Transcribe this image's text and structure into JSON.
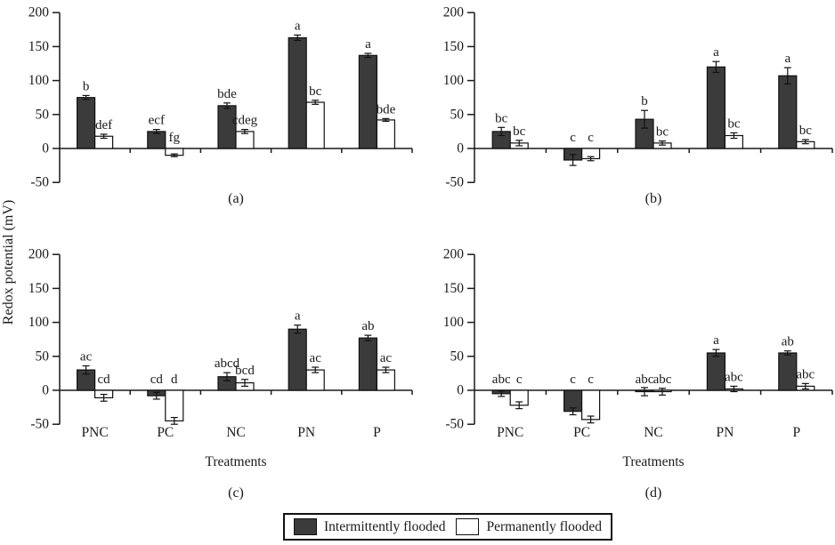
{
  "figure": {
    "y_axis_label": "Redox potential (mV)",
    "x_axis_label": "Treatments",
    "categories": [
      "PNC",
      "PC",
      "NC",
      "PN",
      "P"
    ],
    "y_ticks": [
      200,
      150,
      100,
      50,
      0,
      -50
    ],
    "ylim": [
      -50,
      200
    ],
    "grid": false,
    "legend_position": "bottom",
    "colors": {
      "intermittent": "#3b3b3b",
      "permanent": "#ffffff",
      "axis": "#1a1a1a"
    }
  },
  "legend": {
    "items": [
      {
        "label": "Intermittently flooded",
        "swatch": "intermittent"
      },
      {
        "label": "Permanently flooded",
        "swatch": "permanent"
      }
    ]
  },
  "chart_data": [
    {
      "type": "bar",
      "panel": "a",
      "caption": "(a)",
      "categories": [
        "PNC",
        "PC",
        "NC",
        "PN",
        "P"
      ],
      "series": [
        {
          "name": "Intermittently flooded",
          "values": [
            75,
            25,
            63,
            163,
            137
          ],
          "errors": [
            3,
            3,
            4,
            4,
            3
          ],
          "letters": [
            "b",
            "ecf",
            "bde",
            "a",
            "a"
          ]
        },
        {
          "name": "Permanently flooded",
          "values": [
            18,
            -10,
            25,
            68,
            42
          ],
          "errors": [
            3,
            2,
            3,
            3,
            2
          ],
          "letters": [
            "def",
            "fg",
            "cdeg",
            "bc",
            "bde"
          ]
        }
      ]
    },
    {
      "type": "bar",
      "panel": "b",
      "caption": "(b)",
      "categories": [
        "PNC",
        "PC",
        "NC",
        "PN",
        "P"
      ],
      "series": [
        {
          "name": "Intermittently flooded",
          "values": [
            25,
            -17,
            43,
            120,
            107
          ],
          "errors": [
            6,
            8,
            13,
            8,
            12
          ],
          "letters": [
            "bc",
            "c",
            "b",
            "a",
            "a"
          ]
        },
        {
          "name": "Permanently flooded",
          "values": [
            8,
            -15,
            8,
            19,
            10
          ],
          "errors": [
            4,
            3,
            3,
            4,
            3
          ],
          "letters": [
            "bc",
            "c",
            "bc",
            "bc",
            "bc"
          ]
        }
      ]
    },
    {
      "type": "bar",
      "panel": "c",
      "caption": "(c)",
      "categories": [
        "PNC",
        "PC",
        "NC",
        "PN",
        "P"
      ],
      "series": [
        {
          "name": "Intermittently flooded",
          "values": [
            30,
            -8,
            20,
            90,
            77
          ],
          "errors": [
            6,
            5,
            6,
            6,
            4
          ],
          "letters": [
            "ac",
            "cd",
            "abcd",
            "a",
            "ab"
          ]
        },
        {
          "name": "Permanently flooded",
          "values": [
            -11,
            -45,
            11,
            30,
            30
          ],
          "errors": [
            5,
            5,
            5,
            4,
            4
          ],
          "letters": [
            "cd",
            "d",
            "bcd",
            "ac",
            "ac"
          ]
        }
      ]
    },
    {
      "type": "bar",
      "panel": "d",
      "caption": "(d)",
      "categories": [
        "PNC",
        "PC",
        "NC",
        "PN",
        "P"
      ],
      "series": [
        {
          "name": "Intermittently flooded",
          "values": [
            -5,
            -31,
            -2,
            55,
            55
          ],
          "errors": [
            4,
            5,
            6,
            5,
            3
          ],
          "letters": [
            "abc",
            "c",
            "abc",
            "a",
            "ab"
          ]
        },
        {
          "name": "Permanently flooded",
          "values": [
            -22,
            -43,
            -2,
            2,
            6
          ],
          "errors": [
            5,
            5,
            5,
            4,
            4
          ],
          "letters": [
            "c",
            "c",
            "abc",
            "abc",
            "abc"
          ]
        }
      ]
    }
  ]
}
